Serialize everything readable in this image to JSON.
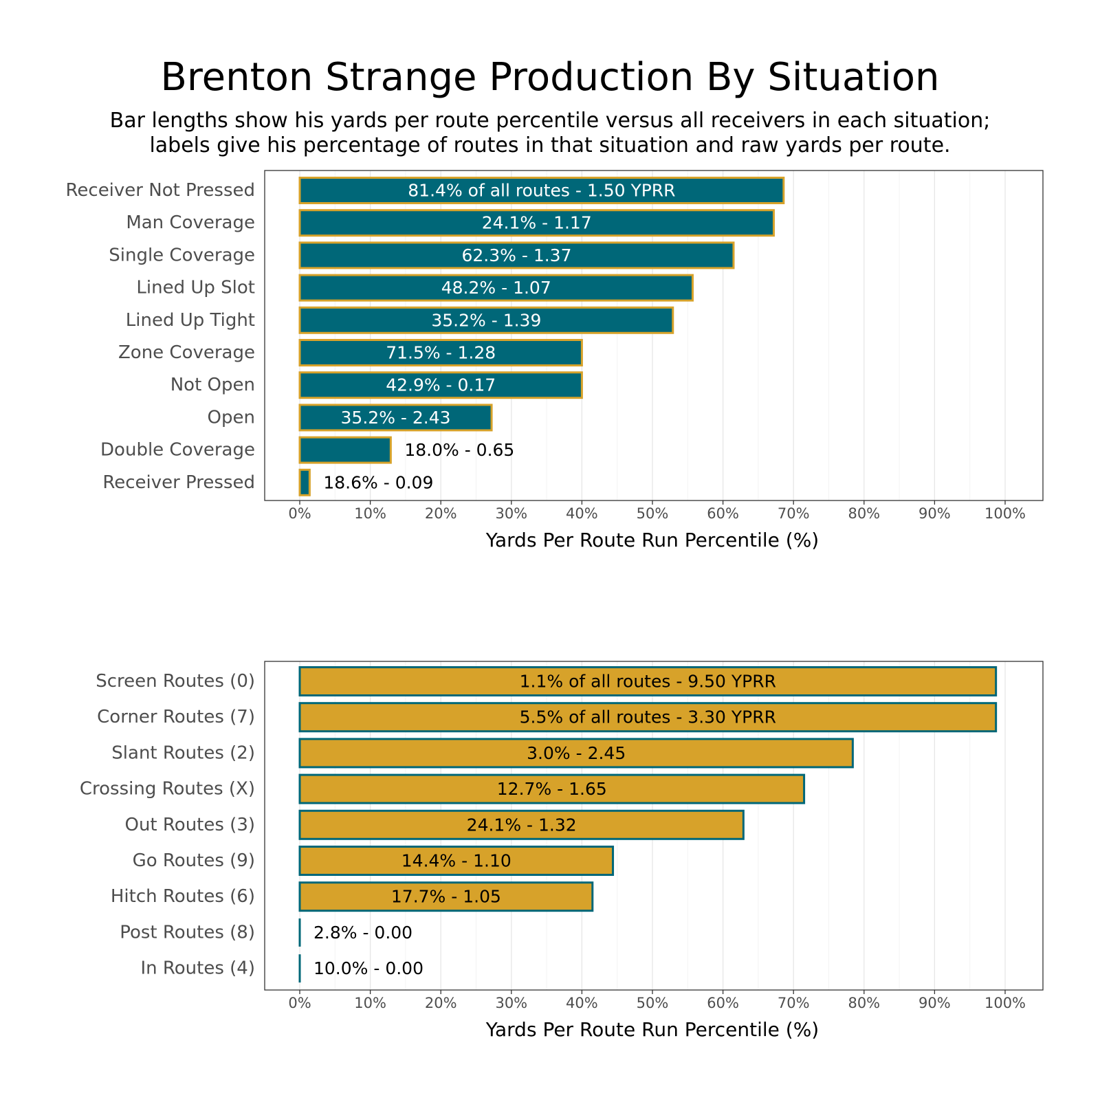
{
  "title": "Brenton Strange Production By Situation",
  "subtitle_lines": [
    "Bar lengths show his yards per route percentile versus all receivers in each situation;",
    "labels give his percentage of routes in that situation and raw yards per route."
  ],
  "colors": {
    "teal": "#006778",
    "gold": "#D7A22A",
    "grid_major": "#e6e6e6",
    "grid_minor": "#f3f3f3",
    "panel_border": "#333333"
  },
  "chart_data": [
    {
      "type": "bar",
      "orientation": "horizontal",
      "xlabel": "Yards Per Route Run Percentile (%)",
      "xlim": [
        0,
        100
      ],
      "xticks": [
        "0%",
        "10%",
        "20%",
        "30%",
        "40%",
        "50%",
        "60%",
        "70%",
        "80%",
        "90%",
        "100%"
      ],
      "grid": true,
      "bar_fill": "#006778",
      "bar_outline": "#D7A22A",
      "categories": [
        "Receiver Not Pressed",
        "Man Coverage",
        "Single Coverage",
        "Lined Up Slot",
        "Lined Up Tight",
        "Zone Coverage",
        "Not Open",
        "Open",
        "Double Coverage",
        "Receiver Pressed"
      ],
      "values": [
        68.6,
        67.2,
        61.5,
        55.7,
        52.9,
        40.0,
        40.0,
        27.2,
        12.9,
        1.4
      ],
      "labels": [
        "81.4% of all routes - 1.50 YPRR",
        "24.1% - 1.17",
        "62.3% - 1.37",
        "48.2% - 1.07",
        "35.2% - 1.39",
        "71.5% - 1.28",
        "42.9% - 0.17",
        "35.2% - 2.43",
        "18.0% - 0.65",
        "18.6% - 0.09"
      ],
      "label_inside": [
        true,
        true,
        true,
        true,
        true,
        true,
        true,
        true,
        false,
        false
      ]
    },
    {
      "type": "bar",
      "orientation": "horizontal",
      "xlabel": "Yards Per Route Run Percentile (%)",
      "xlim": [
        0,
        100
      ],
      "xticks": [
        "0%",
        "10%",
        "20%",
        "30%",
        "40%",
        "50%",
        "60%",
        "70%",
        "80%",
        "90%",
        "100%"
      ],
      "grid": true,
      "bar_fill": "#D7A22A",
      "bar_outline": "#006778",
      "categories": [
        "Screen Routes (0)",
        "Corner Routes (7)",
        "Slant Routes (2)",
        "Crossing Routes (X)",
        "Out Routes (3)",
        "Go Routes (9)",
        "Hitch Routes (6)",
        "Post Routes (8)",
        "In Routes (4)"
      ],
      "values": [
        98.7,
        98.7,
        78.4,
        71.5,
        62.9,
        44.4,
        41.5,
        0,
        0
      ],
      "labels": [
        "1.1% of all routes - 9.50 YPRR",
        "5.5% of all routes - 3.30 YPRR",
        "3.0% - 2.45",
        "12.7% - 1.65",
        "24.1% - 1.32",
        "14.4% - 1.10",
        "17.7% - 1.05",
        "2.8% - 0.00",
        "10.0% - 0.00"
      ],
      "label_inside": [
        true,
        true,
        true,
        true,
        true,
        true,
        true,
        false,
        false
      ]
    }
  ]
}
